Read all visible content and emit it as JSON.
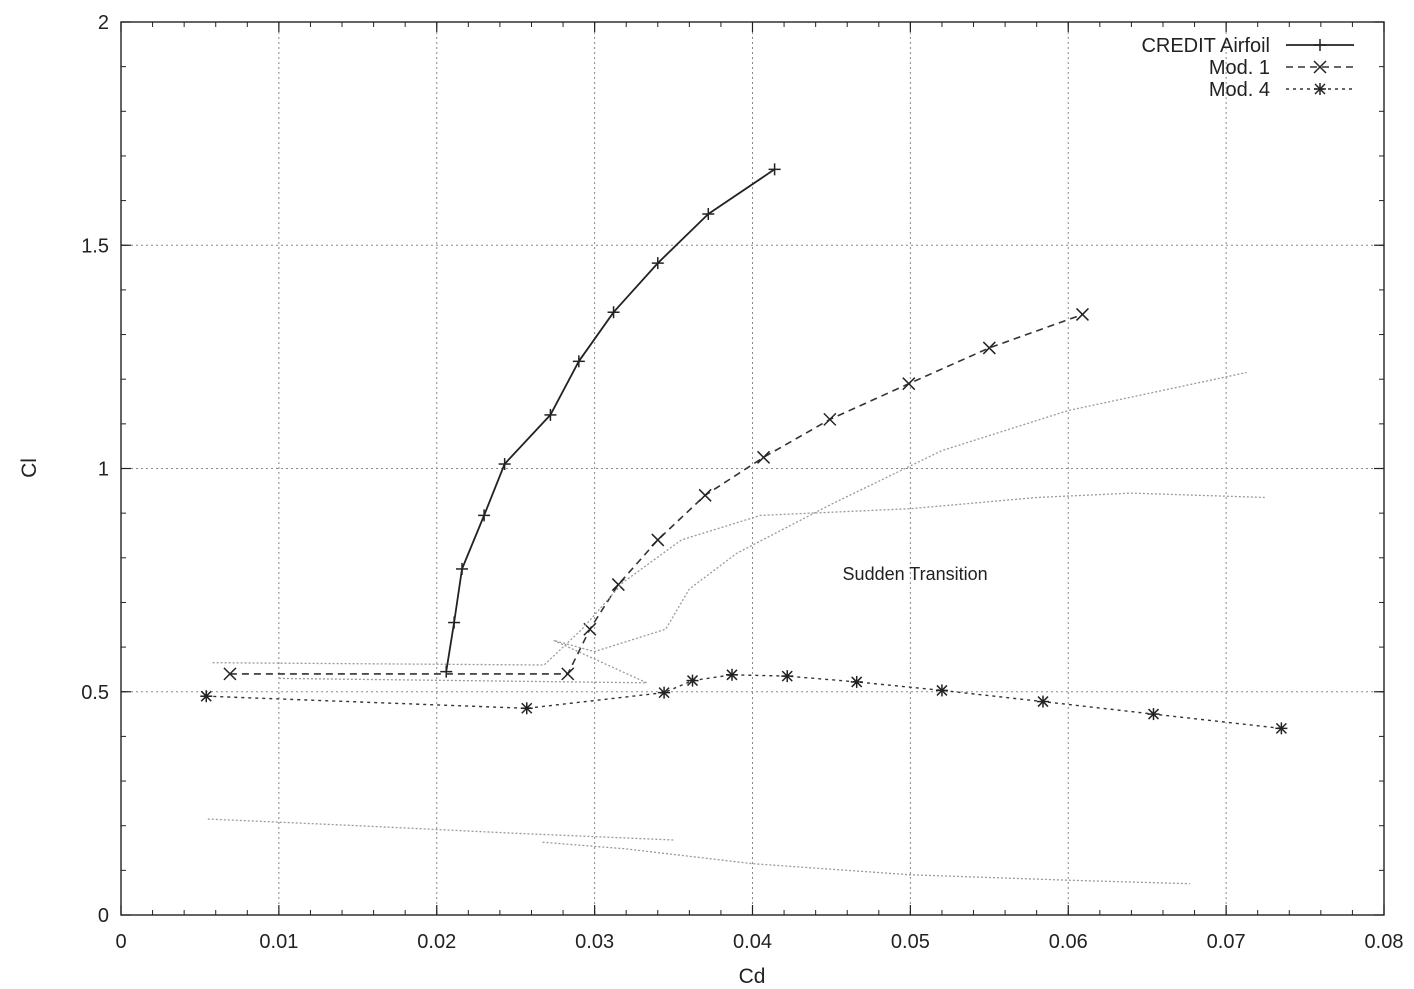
{
  "chart_data": {
    "type": "line",
    "title": "",
    "xlabel": "Cd",
    "ylabel": "Cl",
    "xlim": [
      0,
      0.08
    ],
    "ylim": [
      0,
      2
    ],
    "grid": true,
    "legend_position": "top-right",
    "x_ticks": [
      "0",
      "0.01",
      "0.02",
      "0.03",
      "0.04",
      "0.05",
      "0.06",
      "0.07",
      "0.08"
    ],
    "y_ticks": [
      "0",
      "0.5",
      "1",
      "1.5",
      "2"
    ],
    "series": [
      {
        "name": "CREDIT Airfoil",
        "style": "solid",
        "marker": "plus",
        "points": [
          [
            0.0206,
            0.545
          ],
          [
            0.0211,
            0.655
          ],
          [
            0.0216,
            0.775
          ],
          [
            0.023,
            0.895
          ],
          [
            0.0243,
            1.01
          ],
          [
            0.0272,
            1.12
          ],
          [
            0.029,
            1.24
          ],
          [
            0.0312,
            1.35
          ],
          [
            0.034,
            1.46
          ],
          [
            0.0372,
            1.57
          ],
          [
            0.0414,
            1.67
          ]
        ]
      },
      {
        "name": "Mod. 1",
        "style": "dashed",
        "marker": "x",
        "points": [
          [
            0.0069,
            0.54
          ],
          [
            0.0283,
            0.54
          ],
          [
            0.0297,
            0.64
          ],
          [
            0.0315,
            0.74
          ],
          [
            0.034,
            0.84
          ],
          [
            0.037,
            0.94
          ],
          [
            0.0407,
            1.025
          ],
          [
            0.0449,
            1.11
          ],
          [
            0.0499,
            1.19
          ],
          [
            0.055,
            1.27
          ],
          [
            0.0609,
            1.345
          ]
        ]
      },
      {
        "name": "Mod. 4",
        "style": "dotted",
        "marker": "star",
        "points": [
          [
            0.0054,
            0.49
          ],
          [
            0.0257,
            0.463
          ],
          [
            0.0344,
            0.498
          ],
          [
            0.0362,
            0.525
          ],
          [
            0.0387,
            0.538
          ],
          [
            0.0422,
            0.535
          ],
          [
            0.0466,
            0.522
          ],
          [
            0.052,
            0.503
          ],
          [
            0.0584,
            0.478
          ],
          [
            0.0654,
            0.45
          ],
          [
            0.0735,
            0.418
          ]
        ]
      },
      {
        "style": "thin-dotted",
        "marker": "none",
        "points": [
          [
            0.0058,
            0.565
          ],
          [
            0.0268,
            0.56
          ],
          [
            0.0292,
            0.64
          ],
          [
            0.0318,
            0.745
          ],
          [
            0.0355,
            0.84
          ],
          [
            0.0405,
            0.895
          ],
          [
            0.05,
            0.91
          ],
          [
            0.058,
            0.935
          ],
          [
            0.064,
            0.945
          ],
          [
            0.0725,
            0.935
          ]
        ]
      },
      {
        "style": "thin-dotted",
        "marker": "none",
        "points": [
          [
            0.01,
            0.53
          ],
          [
            0.0333,
            0.52
          ],
          [
            0.0274,
            0.615
          ],
          [
            0.03,
            0.59
          ],
          [
            0.0345,
            0.64
          ],
          [
            0.036,
            0.73
          ],
          [
            0.039,
            0.81
          ],
          [
            0.045,
            0.92
          ],
          [
            0.052,
            1.04
          ],
          [
            0.06,
            1.13
          ],
          [
            0.0713,
            1.215
          ]
        ]
      },
      {
        "style": "thin-dotted",
        "marker": "none",
        "points": [
          [
            0.0055,
            0.215
          ],
          [
            0.015,
            0.2
          ],
          [
            0.025,
            0.183
          ],
          [
            0.035,
            0.168
          ]
        ]
      },
      {
        "style": "thin-dotted",
        "marker": "none",
        "points": [
          [
            0.0267,
            0.163
          ],
          [
            0.032,
            0.148
          ],
          [
            0.04,
            0.115
          ],
          [
            0.05,
            0.09
          ],
          [
            0.06,
            0.078
          ],
          [
            0.0677,
            0.07
          ]
        ]
      }
    ],
    "annotations": [
      {
        "text": "Sudden Transition",
        "x": 0.0503,
        "y": 0.75
      }
    ]
  }
}
